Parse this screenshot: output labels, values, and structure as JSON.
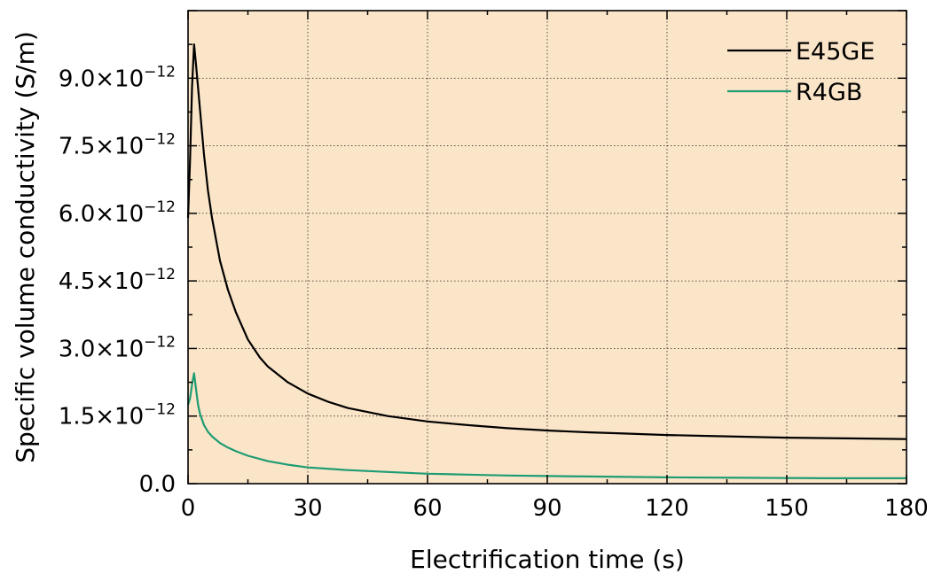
{
  "chart_data": {
    "type": "line",
    "xlabel": "Electrification time (s)",
    "ylabel": "Specific volume conductivity (S/m)",
    "xlim": [
      0,
      180
    ],
    "ylim": [
      0,
      1.05e-11
    ],
    "x_ticks": [
      0,
      30,
      60,
      90,
      120,
      150,
      180
    ],
    "x_tick_labels": [
      "0",
      "30",
      "60",
      "90",
      "120",
      "150",
      "180"
    ],
    "y_ticks": [
      0,
      1.5e-12,
      3e-12,
      4.5e-12,
      6e-12,
      7.5e-12,
      9e-12
    ],
    "y_tick_labels": [
      {
        "mantissa": "0.0",
        "exponent": ""
      },
      {
        "mantissa": "1.5×10",
        "exponent": "−12"
      },
      {
        "mantissa": "3.0×10",
        "exponent": "−12"
      },
      {
        "mantissa": "4.5×10",
        "exponent": "−12"
      },
      {
        "mantissa": "6.0×10",
        "exponent": "−12"
      },
      {
        "mantissa": "7.5×10",
        "exponent": "−12"
      },
      {
        "mantissa": "9.0×10",
        "exponent": "−12"
      }
    ],
    "grid": true,
    "legend_position": "top-right",
    "background_color": "#fbe5c8",
    "series": [
      {
        "name": "E45GE",
        "color": "#000000",
        "x": [
          0,
          0.5,
          1,
          1.5,
          2,
          3,
          4,
          5,
          6,
          8,
          10,
          12,
          15,
          18,
          20,
          25,
          30,
          35,
          40,
          50,
          60,
          70,
          80,
          90,
          100,
          110,
          120,
          130,
          140,
          150,
          160,
          170,
          180
        ],
        "y": [
          5.9e-12,
          7.2e-12,
          8.8e-12,
          9.75e-12,
          9.3e-12,
          8.3e-12,
          7.3e-12,
          6.5e-12,
          5.9e-12,
          4.95e-12,
          4.3e-12,
          3.8e-12,
          3.2e-12,
          2.8e-12,
          2.6e-12,
          2.25e-12,
          2e-12,
          1.82e-12,
          1.68e-12,
          1.5e-12,
          1.38e-12,
          1.3e-12,
          1.23e-12,
          1.18e-12,
          1.14e-12,
          1.11e-12,
          1.08e-12,
          1.06e-12,
          1.04e-12,
          1.02e-12,
          1.01e-12,
          1e-12,
          9.9e-13
        ]
      },
      {
        "name": "R4GB",
        "color": "#1e9c74",
        "x": [
          0,
          0.5,
          1,
          1.5,
          2,
          2.5,
          3,
          4,
          5,
          6,
          8,
          10,
          12,
          15,
          20,
          25,
          30,
          40,
          50,
          60,
          70,
          80,
          90,
          100,
          120,
          140,
          160,
          180
        ],
        "y": [
          1.75e-12,
          1.9e-12,
          2.2e-12,
          2.45e-12,
          2.1e-12,
          1.75e-12,
          1.55e-12,
          1.3e-12,
          1.15e-12,
          1.05e-12,
          9e-13,
          8e-13,
          7.2e-13,
          6.2e-13,
          5e-13,
          4.2e-13,
          3.6e-13,
          3e-13,
          2.6e-13,
          2.2e-13,
          2e-13,
          1.8e-13,
          1.7e-13,
          1.6e-13,
          1.4e-13,
          1.3e-13,
          1.2e-13,
          1.2e-13
        ]
      }
    ]
  }
}
